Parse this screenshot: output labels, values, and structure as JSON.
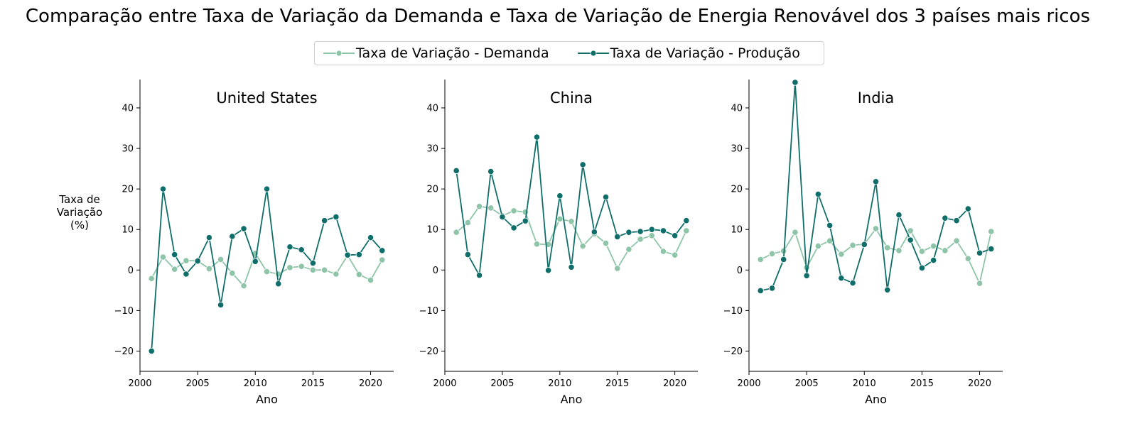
{
  "title": "Comparação entre Taxa de Variação da Demanda e Taxa de Variação de Energia Renovável dos 3 países mais ricos",
  "y_axis_title": [
    "Taxa de",
    "Variação",
    "(%)"
  ],
  "colors": {
    "demand": "#8ec5a9",
    "production": "#0f6e6a",
    "axis": "#000000"
  },
  "legend": [
    {
      "label": "Taxa de Variação - Demanda",
      "series": "demand"
    },
    {
      "label": "Taxa de Variação - Produção",
      "series": "production"
    }
  ],
  "chart_data": [
    {
      "type": "line",
      "title": "United States",
      "xlabel": "Ano",
      "ylabel": "",
      "xlim": [
        2000,
        2022
      ],
      "ylim": [
        -25,
        47
      ],
      "xticks": [
        2000,
        2005,
        2010,
        2015,
        2020
      ],
      "yticks": [
        -20,
        -10,
        0,
        10,
        20,
        30,
        40
      ],
      "x": [
        2001,
        2002,
        2003,
        2004,
        2005,
        2006,
        2007,
        2008,
        2009,
        2010,
        2011,
        2012,
        2013,
        2014,
        2015,
        2016,
        2017,
        2018,
        2019,
        2020,
        2021
      ],
      "series": [
        {
          "name": "Taxa de Variação - Demanda",
          "key": "demand",
          "values": [
            -2.1,
            3.2,
            0.2,
            2.3,
            2.3,
            0.3,
            2.6,
            -0.8,
            -3.9,
            4.1,
            -0.4,
            -1.0,
            0.6,
            0.9,
            0.0,
            0.0,
            -1.0,
            3.6,
            -1.1,
            -2.5,
            2.5
          ]
        },
        {
          "name": "Taxa de Variação - Produção",
          "key": "production",
          "values": [
            -20.0,
            20.0,
            3.8,
            -1.0,
            2.2,
            8.0,
            -8.6,
            8.3,
            10.2,
            2.1,
            20.0,
            -3.4,
            5.7,
            5.0,
            1.7,
            12.2,
            13.1,
            3.7,
            3.8,
            8.0,
            4.8
          ]
        }
      ]
    },
    {
      "type": "line",
      "title": "China",
      "xlabel": "Ano",
      "ylabel": "",
      "xlim": [
        2000,
        2022
      ],
      "ylim": [
        -25,
        47
      ],
      "xticks": [
        2000,
        2005,
        2010,
        2015,
        2020
      ],
      "yticks": [
        -20,
        -10,
        0,
        10,
        20,
        30,
        40
      ],
      "x": [
        2001,
        2002,
        2003,
        2004,
        2005,
        2006,
        2007,
        2008,
        2009,
        2010,
        2011,
        2012,
        2013,
        2014,
        2015,
        2016,
        2017,
        2018,
        2019,
        2020,
        2021
      ],
      "series": [
        {
          "name": "Taxa de Variação - Demanda",
          "key": "demand",
          "values": [
            9.3,
            11.7,
            15.7,
            15.3,
            13.4,
            14.6,
            14.3,
            6.4,
            6.3,
            12.6,
            12.0,
            5.9,
            8.9,
            6.6,
            0.4,
            5.1,
            7.6,
            8.5,
            4.6,
            3.7,
            9.7
          ]
        },
        {
          "name": "Taxa de Variação - Produção",
          "key": "production",
          "values": [
            24.5,
            3.8,
            -1.3,
            24.3,
            13.1,
            10.4,
            12.1,
            32.8,
            -0.1,
            18.3,
            0.7,
            26.0,
            9.4,
            18.0,
            8.2,
            9.3,
            9.5,
            10.0,
            9.7,
            8.5,
            12.2
          ]
        }
      ]
    },
    {
      "type": "line",
      "title": "India",
      "xlabel": "Ano",
      "ylabel": "",
      "xlim": [
        2000,
        2022
      ],
      "ylim": [
        -25,
        47
      ],
      "xticks": [
        2000,
        2005,
        2010,
        2015,
        2020
      ],
      "yticks": [
        -20,
        -10,
        0,
        10,
        20,
        30,
        40
      ],
      "x": [
        2001,
        2002,
        2003,
        2004,
        2005,
        2006,
        2007,
        2008,
        2009,
        2010,
        2011,
        2012,
        2013,
        2014,
        2015,
        2016,
        2017,
        2018,
        2019,
        2020,
        2021
      ],
      "series": [
        {
          "name": "Taxa de Variação - Demanda",
          "key": "demand",
          "values": [
            2.6,
            4.0,
            4.7,
            9.3,
            0.6,
            5.9,
            7.2,
            3.9,
            6.1,
            6.4,
            10.2,
            5.5,
            4.8,
            9.7,
            4.6,
            5.9,
            4.8,
            7.2,
            2.8,
            -3.3,
            9.5
          ]
        },
        {
          "name": "Taxa de Variação - Produção",
          "key": "production",
          "values": [
            -5.1,
            -4.5,
            2.6,
            46.3,
            -1.4,
            18.7,
            11.0,
            -2.0,
            -3.2,
            6.3,
            21.8,
            -4.9,
            13.6,
            7.4,
            0.5,
            2.4,
            12.8,
            12.2,
            15.1,
            4.2,
            5.2
          ]
        }
      ]
    }
  ]
}
